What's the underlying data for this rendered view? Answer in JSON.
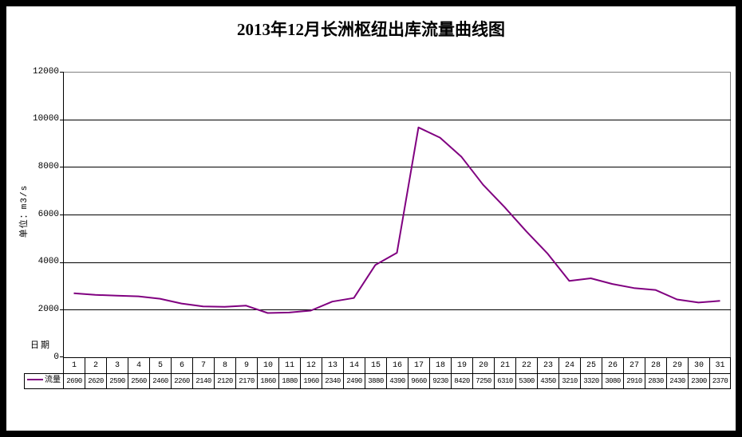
{
  "title": "2013年12月长洲枢纽出库流量曲线图",
  "colors": {
    "line": "#800080",
    "gridline": "#000000",
    "plot_border": "#808080",
    "axis": "#000000",
    "frame": "#000000",
    "background": "#ffffff",
    "text": "#000000"
  },
  "chart_data": {
    "type": "line",
    "title": "2013年12月长洲枢纽出库流量曲线图",
    "xlabel": "日期",
    "ylabel": "单位：m3/s",
    "ylim": [
      0,
      12000
    ],
    "yticks": [
      0,
      2000,
      4000,
      6000,
      8000,
      10000,
      12000
    ],
    "grid": true,
    "legend_position": "table-row-header",
    "categories": [
      1,
      2,
      3,
      4,
      5,
      6,
      7,
      8,
      9,
      10,
      11,
      12,
      13,
      14,
      15,
      16,
      17,
      18,
      19,
      20,
      21,
      22,
      23,
      24,
      25,
      26,
      27,
      28,
      29,
      30,
      31
    ],
    "series": [
      {
        "name": "流量",
        "color": "#800080",
        "values": [
          2690,
          2620,
          2590,
          2560,
          2460,
          2260,
          2140,
          2120,
          2170,
          1860,
          1880,
          1960,
          2340,
          2490,
          3880,
          4390,
          9660,
          9230,
          8420,
          7250,
          6310,
          5300,
          4350,
          3210,
          3320,
          3080,
          2910,
          2830,
          2430,
          2300,
          2370
        ]
      }
    ]
  }
}
